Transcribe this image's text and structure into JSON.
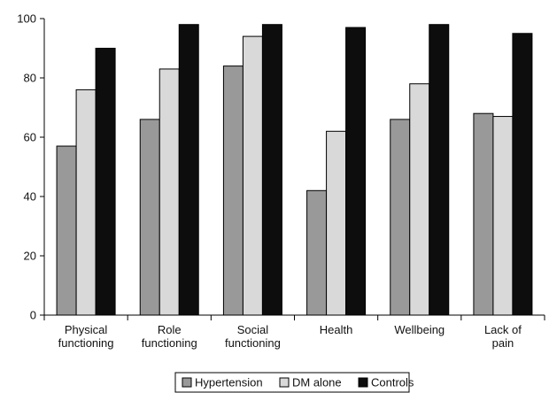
{
  "chart_data": {
    "type": "bar",
    "categories": [
      [
        "Physical",
        "functioning"
      ],
      [
        "Role",
        "functioning"
      ],
      [
        "Social",
        "functioning"
      ],
      [
        "Health"
      ],
      [
        "Wellbeing"
      ],
      [
        "Lack of",
        "pain"
      ]
    ],
    "series": [
      {
        "name": "Hypertension",
        "color": "#999999",
        "values": [
          57,
          66,
          84,
          42,
          66,
          68
        ]
      },
      {
        "name": "DM alone",
        "color": "#d9d9d9",
        "values": [
          76,
          83,
          94,
          62,
          78,
          67
        ]
      },
      {
        "name": "Controls",
        "color": "#0d0d0d",
        "values": [
          90,
          98,
          98,
          97,
          98,
          95
        ]
      }
    ],
    "ylim": [
      0,
      100
    ],
    "yticks": [
      0,
      20,
      40,
      60,
      80,
      100
    ],
    "grid": false,
    "legend_position": "bottom-center"
  }
}
